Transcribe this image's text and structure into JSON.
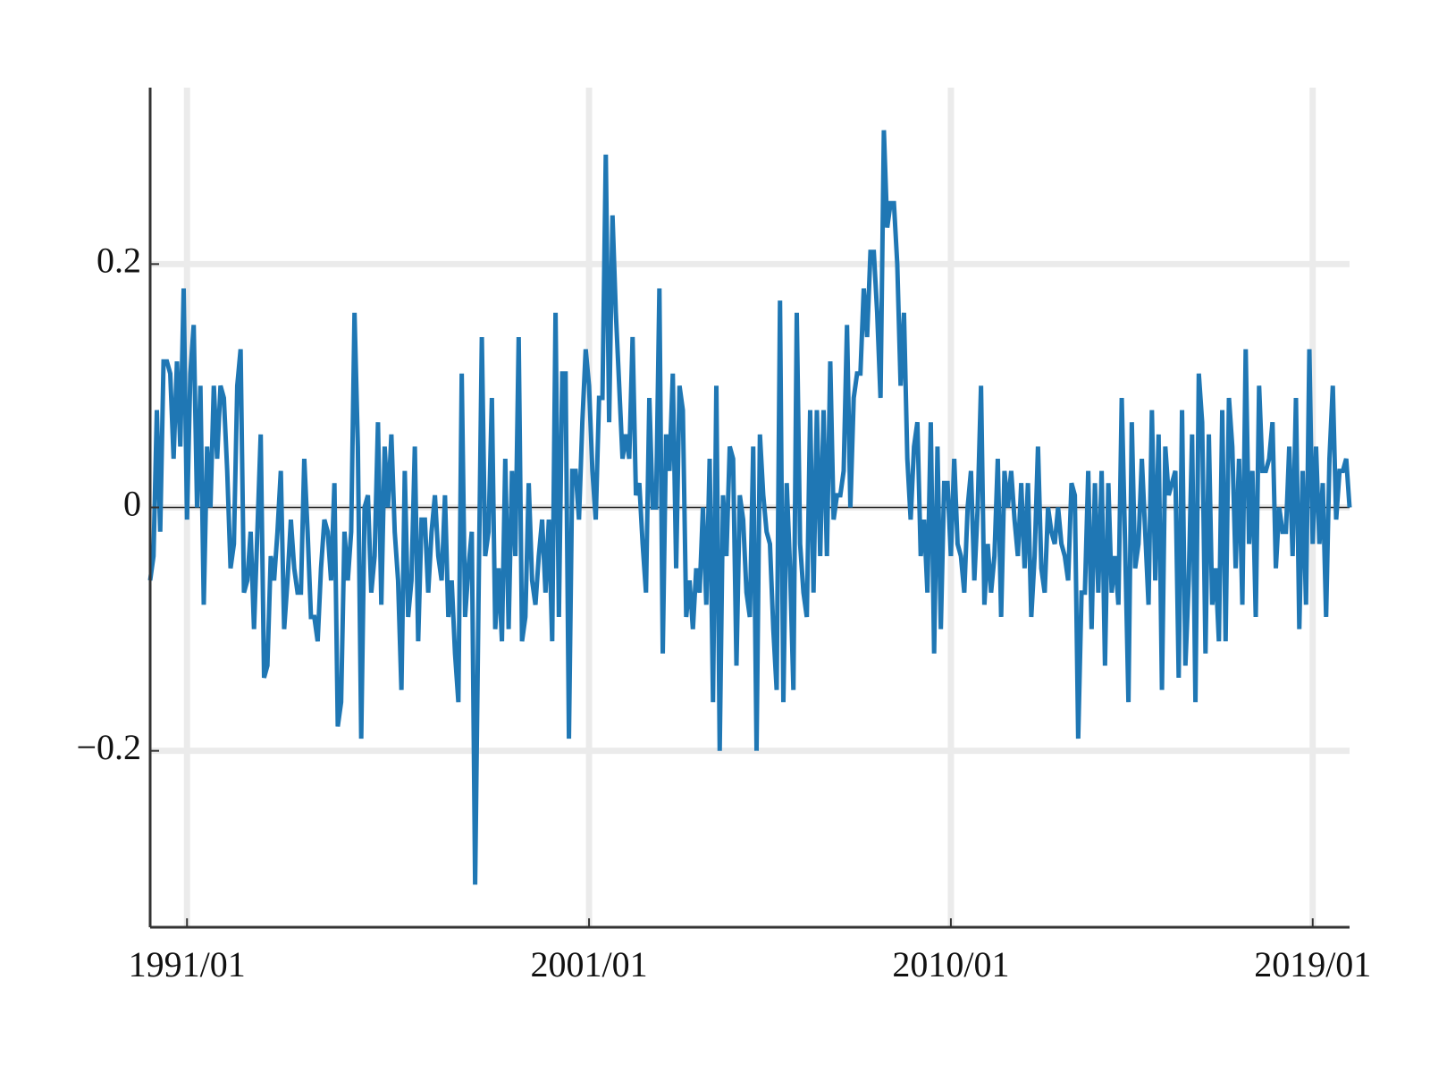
{
  "chart_data": {
    "type": "line",
    "x": [
      "1990/02",
      "1990/03",
      "1990/04",
      "1990/05",
      "1990/06",
      "1990/07",
      "1990/08",
      "1990/09",
      "1990/10",
      "1990/11",
      "1990/12",
      "1991/01",
      "1991/02",
      "1991/03",
      "1991/04",
      "1991/05",
      "1991/06",
      "1991/07",
      "1991/08",
      "1991/09",
      "1991/10",
      "1991/11",
      "1991/12",
      "1992/01",
      "1992/02",
      "1992/03",
      "1992/04",
      "1992/05",
      "1992/06",
      "1992/07",
      "1992/08",
      "1992/09",
      "1992/10",
      "1992/11",
      "1992/12",
      "1993/01",
      "1993/02",
      "1993/03",
      "1993/04",
      "1993/05",
      "1993/06",
      "1993/07",
      "1993/08",
      "1993/09",
      "1993/10",
      "1993/11",
      "1993/12",
      "1994/01",
      "1994/02",
      "1994/03",
      "1994/04",
      "1994/05",
      "1994/06",
      "1994/07",
      "1994/08",
      "1994/09",
      "1994/10",
      "1994/11",
      "1994/12",
      "1995/01",
      "1995/02",
      "1995/03",
      "1995/04",
      "1995/05",
      "1995/06",
      "1995/07",
      "1995/08",
      "1995/09",
      "1995/10",
      "1995/11",
      "1995/12",
      "1996/01",
      "1996/02",
      "1996/03",
      "1996/04",
      "1996/05",
      "1996/06",
      "1996/07",
      "1996/08",
      "1996/09",
      "1996/10",
      "1996/11",
      "1996/12",
      "1997/01",
      "1997/02",
      "1997/03",
      "1997/04",
      "1997/05",
      "1997/06",
      "1997/07",
      "1997/08",
      "1997/09",
      "1997/10",
      "1997/11",
      "1997/12",
      "1998/01",
      "1998/02",
      "1998/03",
      "1998/04",
      "1998/05",
      "1998/06",
      "1998/07",
      "1998/08",
      "1998/09",
      "1998/10",
      "1998/11",
      "1998/12",
      "1999/01",
      "1999/02",
      "1999/03",
      "1999/04",
      "1999/05",
      "1999/06",
      "1999/07",
      "1999/08",
      "1999/09",
      "1999/10",
      "1999/11",
      "1999/12",
      "2000/01",
      "2000/02",
      "2000/03",
      "2000/04",
      "2000/05",
      "2000/06",
      "2000/07",
      "2000/08",
      "2000/09",
      "2000/10",
      "2000/11",
      "2000/12",
      "2001/01",
      "2001/02",
      "2001/03",
      "2001/04",
      "2001/05",
      "2001/06",
      "2001/07",
      "2001/08",
      "2001/09",
      "2001/10",
      "2001/11",
      "2001/12",
      "2002/01",
      "2002/02",
      "2002/03",
      "2002/04",
      "2002/05",
      "2002/06",
      "2002/07",
      "2002/08",
      "2002/09",
      "2002/10",
      "2002/11",
      "2002/12",
      "2003/01",
      "2003/02",
      "2003/03",
      "2003/04",
      "2003/05",
      "2003/06",
      "2003/07",
      "2003/08",
      "2003/09",
      "2003/10",
      "2003/11",
      "2003/12",
      "2004/01",
      "2004/02",
      "2004/03",
      "2004/04",
      "2004/05",
      "2004/06",
      "2004/07",
      "2004/08",
      "2004/09",
      "2004/10",
      "2004/11",
      "2004/12",
      "2005/01",
      "2005/02",
      "2005/03",
      "2005/04",
      "2005/05",
      "2005/06",
      "2005/07",
      "2005/08",
      "2005/09",
      "2005/10",
      "2005/11",
      "2005/12",
      "2006/01",
      "2006/02",
      "2006/03",
      "2006/04",
      "2006/05",
      "2006/06",
      "2006/07",
      "2006/08",
      "2006/09",
      "2006/10",
      "2006/11",
      "2006/12",
      "2007/01",
      "2007/02",
      "2007/03",
      "2007/04",
      "2007/05",
      "2007/06",
      "2007/07",
      "2007/08",
      "2007/09",
      "2007/10",
      "2007/11",
      "2007/12",
      "2008/01",
      "2008/02",
      "2008/03",
      "2008/04",
      "2008/05",
      "2008/06",
      "2008/07",
      "2008/08",
      "2008/09",
      "2008/10",
      "2008/11",
      "2008/12",
      "2009/01",
      "2009/02",
      "2009/03",
      "2009/04",
      "2009/05",
      "2009/06",
      "2009/07",
      "2009/08",
      "2009/09",
      "2009/10",
      "2009/11",
      "2009/12",
      "2010/01",
      "2010/02",
      "2010/03",
      "2010/04",
      "2010/05",
      "2010/06",
      "2010/07",
      "2010/08",
      "2010/09",
      "2010/10",
      "2010/11",
      "2010/12",
      "2011/01",
      "2011/02",
      "2011/03",
      "2011/04",
      "2011/05",
      "2011/06",
      "2011/07",
      "2011/08",
      "2011/09",
      "2011/10",
      "2011/11",
      "2011/12",
      "2012/01",
      "2012/02",
      "2012/03",
      "2012/04",
      "2012/05",
      "2012/06",
      "2012/07",
      "2012/08",
      "2012/09",
      "2012/10",
      "2012/11",
      "2012/12",
      "2013/01",
      "2013/02",
      "2013/03",
      "2013/04",
      "2013/05",
      "2013/06",
      "2013/07",
      "2013/08",
      "2013/09",
      "2013/10",
      "2013/11",
      "2013/12",
      "2014/01",
      "2014/02",
      "2014/03",
      "2014/04",
      "2014/05",
      "2014/06",
      "2014/07",
      "2014/08",
      "2014/09",
      "2014/10",
      "2014/11",
      "2014/12",
      "2015/01",
      "2015/02",
      "2015/03",
      "2015/04",
      "2015/05",
      "2015/06",
      "2015/07",
      "2015/08",
      "2015/09",
      "2015/10",
      "2015/11",
      "2015/12",
      "2016/01",
      "2016/02",
      "2016/03",
      "2016/04",
      "2016/05",
      "2016/06",
      "2016/07",
      "2016/08",
      "2016/09",
      "2016/10",
      "2016/11",
      "2016/12",
      "2017/01",
      "2017/02",
      "2017/03",
      "2017/04",
      "2017/05",
      "2017/06",
      "2017/07",
      "2017/08",
      "2017/09",
      "2017/10",
      "2017/11",
      "2017/12",
      "2018/01",
      "2018/02",
      "2018/03",
      "2018/04",
      "2018/05",
      "2018/06",
      "2018/07",
      "2018/08",
      "2018/09",
      "2018/10",
      "2018/11",
      "2018/12",
      "2019/01",
      "2019/02",
      "2019/03",
      "2019/04",
      "2019/05",
      "2019/06",
      "2019/07",
      "2019/08",
      "2019/09",
      "2019/10",
      "2019/11",
      "2019/12"
    ],
    "series": [
      {
        "color": "#1f77b4",
        "values": [
          -0.06,
          -0.04,
          0.08,
          -0.02,
          0.12,
          0.12,
          0.11,
          0.04,
          0.12,
          0.05,
          0.18,
          -0.01,
          0.11,
          0.15,
          0.0,
          0.1,
          -0.08,
          0.05,
          0.0,
          0.1,
          0.04,
          0.1,
          0.09,
          0.03,
          -0.05,
          -0.03,
          0.1,
          0.13,
          -0.07,
          -0.06,
          -0.02,
          -0.1,
          -0.02,
          0.06,
          -0.14,
          -0.13,
          -0.04,
          -0.06,
          -0.02,
          0.03,
          -0.1,
          -0.06,
          -0.01,
          -0.05,
          -0.07,
          -0.07,
          0.04,
          -0.02,
          -0.09,
          -0.09,
          -0.11,
          -0.05,
          -0.01,
          -0.02,
          -0.06,
          0.02,
          -0.18,
          -0.16,
          -0.02,
          -0.06,
          -0.02,
          0.16,
          0.05,
          -0.19,
          0.0,
          0.01,
          -0.07,
          -0.04,
          0.07,
          -0.08,
          0.05,
          0.0,
          0.06,
          -0.02,
          -0.06,
          -0.15,
          0.03,
          -0.09,
          -0.06,
          0.05,
          -0.11,
          -0.01,
          -0.01,
          -0.07,
          -0.02,
          0.01,
          -0.04,
          -0.06,
          0.01,
          -0.09,
          -0.06,
          -0.12,
          -0.16,
          0.11,
          -0.09,
          -0.05,
          -0.02,
          -0.31,
          -0.08,
          0.14,
          -0.04,
          -0.02,
          0.09,
          -0.1,
          -0.05,
          -0.11,
          0.04,
          -0.1,
          0.03,
          -0.04,
          0.14,
          -0.11,
          -0.09,
          0.02,
          -0.06,
          -0.08,
          -0.04,
          -0.01,
          -0.07,
          -0.01,
          -0.11,
          0.16,
          -0.09,
          0.11,
          0.11,
          -0.19,
          0.03,
          0.03,
          -0.01,
          0.07,
          0.13,
          0.1,
          0.03,
          -0.01,
          0.09,
          0.09,
          0.29,
          0.07,
          0.24,
          0.16,
          0.1,
          0.04,
          0.06,
          0.04,
          0.14,
          0.01,
          0.02,
          -0.03,
          -0.07,
          0.09,
          0.0,
          0.0,
          0.18,
          -0.12,
          0.06,
          0.03,
          0.11,
          -0.05,
          0.1,
          0.08,
          -0.09,
          -0.06,
          -0.1,
          -0.05,
          -0.07,
          0.0,
          -0.08,
          0.04,
          -0.16,
          0.1,
          -0.2,
          0.01,
          -0.04,
          0.05,
          0.04,
          -0.13,
          0.01,
          -0.01,
          -0.07,
          -0.09,
          0.05,
          -0.2,
          0.06,
          0.01,
          -0.02,
          -0.03,
          -0.1,
          -0.15,
          0.17,
          -0.16,
          0.02,
          -0.05,
          -0.15,
          0.16,
          -0.03,
          -0.07,
          -0.09,
          0.08,
          -0.07,
          0.08,
          -0.04,
          0.08,
          -0.04,
          0.12,
          -0.01,
          0.01,
          0.01,
          0.03,
          0.15,
          0.0,
          0.09,
          0.11,
          0.11,
          0.18,
          0.14,
          0.21,
          0.21,
          0.16,
          0.09,
          0.31,
          0.23,
          0.25,
          0.25,
          0.2,
          0.1,
          0.16,
          0.04,
          -0.01,
          0.05,
          0.07,
          -0.04,
          -0.01,
          -0.07,
          0.07,
          -0.12,
          0.05,
          -0.1,
          0.02,
          0.02,
          -0.04,
          0.04,
          -0.03,
          -0.04,
          -0.07,
          0.0,
          0.03,
          -0.06,
          0.0,
          0.1,
          -0.08,
          -0.03,
          -0.07,
          -0.04,
          0.04,
          -0.09,
          0.03,
          0.0,
          0.03,
          -0.01,
          -0.04,
          0.02,
          -0.05,
          0.02,
          -0.09,
          -0.04,
          0.05,
          -0.05,
          -0.07,
          0.0,
          -0.02,
          -0.03,
          0.0,
          -0.03,
          -0.04,
          -0.06,
          0.02,
          0.01,
          -0.19,
          -0.07,
          -0.07,
          0.03,
          -0.1,
          0.02,
          -0.07,
          0.03,
          -0.13,
          0.02,
          -0.07,
          -0.04,
          -0.08,
          0.09,
          -0.03,
          -0.16,
          0.07,
          -0.05,
          -0.03,
          0.04,
          -0.02,
          -0.08,
          0.08,
          -0.06,
          0.06,
          -0.15,
          0.05,
          0.01,
          0.02,
          0.03,
          -0.14,
          0.08,
          -0.13,
          -0.06,
          0.06,
          -0.16,
          0.11,
          0.07,
          -0.12,
          0.06,
          -0.08,
          -0.05,
          -0.11,
          0.08,
          -0.11,
          0.09,
          0.05,
          -0.05,
          0.04,
          -0.08,
          0.13,
          -0.03,
          0.03,
          -0.09,
          0.1,
          0.03,
          0.03,
          0.04,
          0.07,
          -0.05,
          0.0,
          -0.02,
          -0.02,
          0.05,
          -0.04,
          0.09,
          -0.1,
          0.03,
          -0.08,
          0.13,
          -0.03,
          0.05,
          -0.03,
          0.02,
          -0.09,
          0.04,
          0.1,
          -0.01,
          0.03,
          0.03,
          0.04,
          0.0
        ]
      }
    ],
    "xlim": [
      "1990/02",
      "2019/12"
    ],
    "xticks": [
      "1991/01",
      "2001/01",
      "2010/01",
      "2019/01"
    ],
    "ylim": [
      -0.345,
      0.345
    ],
    "yticks": [
      {
        "value": -0.2,
        "label": "−0.2"
      },
      0,
      0.2
    ],
    "grid": true,
    "zero_line": true
  }
}
